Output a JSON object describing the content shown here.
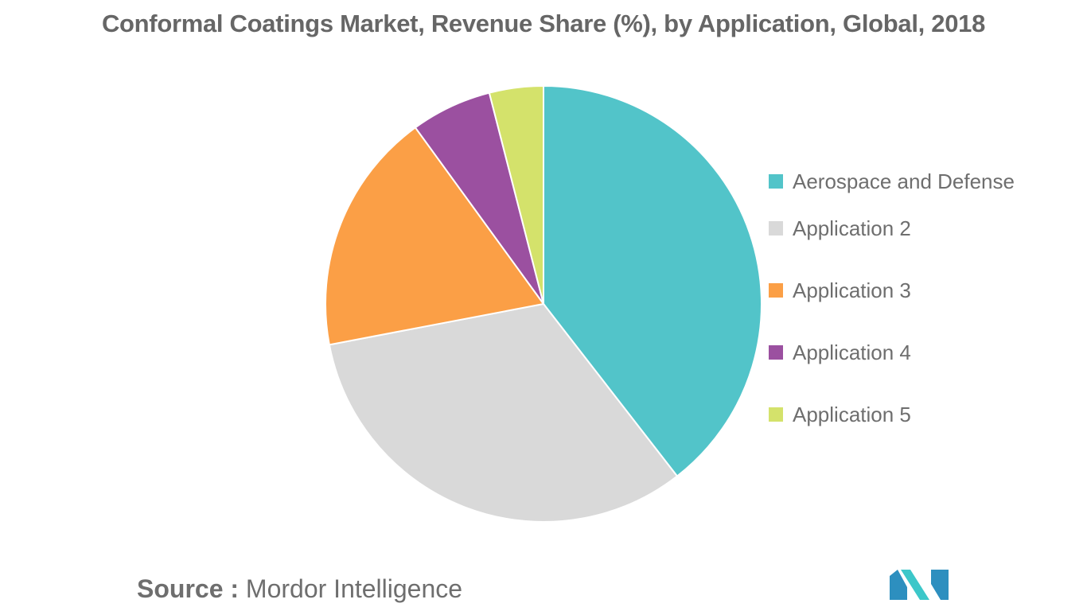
{
  "chart_data": {
    "type": "pie",
    "title": "Conformal Coatings Market, Revenue Share (%), by Application, Global, 2018",
    "categories": [
      "Aerospace and Defense",
      "Application 2",
      "Application 3",
      "Application 4",
      "Application 5"
    ],
    "values": [
      39.5,
      32.5,
      18,
      6,
      4
    ],
    "colors": [
      "#52c4c9",
      "#d9d9d9",
      "#fb9f46",
      "#9b50a0",
      "#d4e26b"
    ],
    "legend_position": "right"
  },
  "source": {
    "label": "Source :",
    "value": "Mordor Intelligence"
  },
  "logo": {
    "colors": [
      "#2d8fbf",
      "#3cc7c9"
    ]
  }
}
